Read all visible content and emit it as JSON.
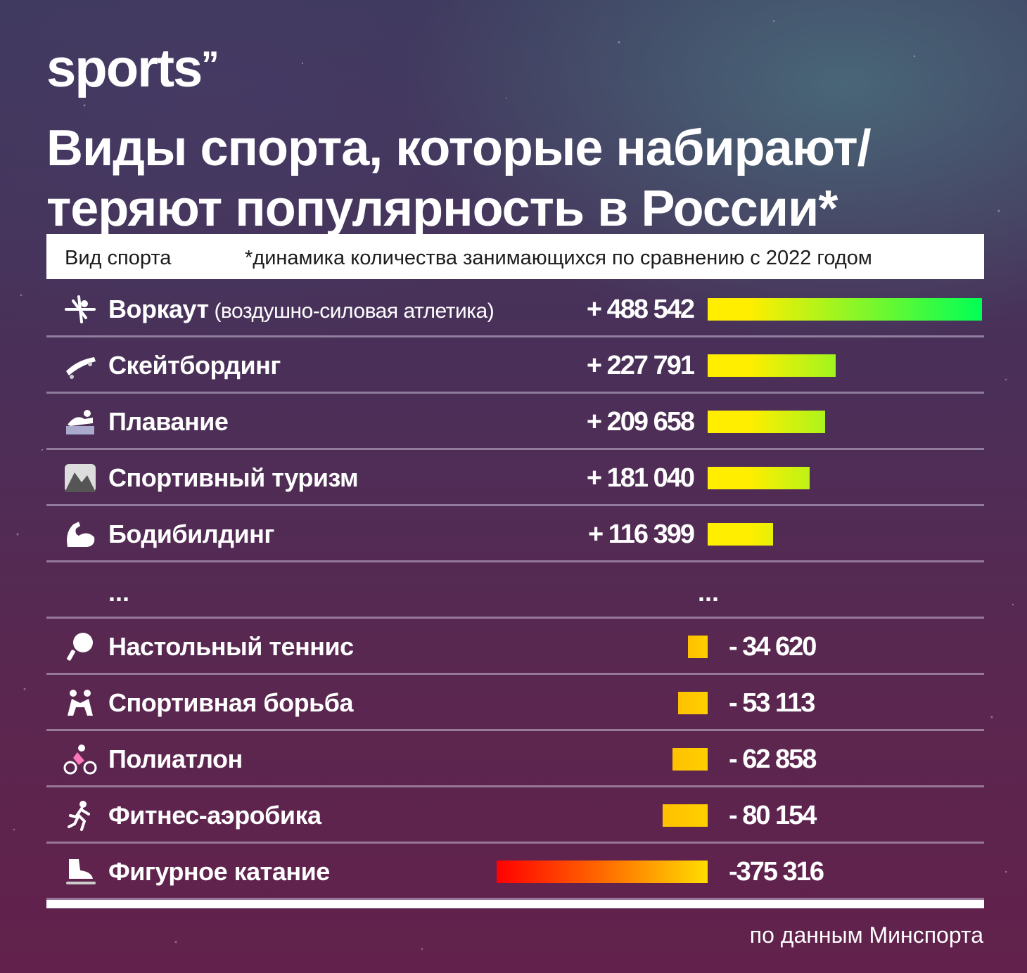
{
  "logo": {
    "text": "sports",
    "mark": "’’"
  },
  "title": "Виды спорта, которые набирают/ теряют популярность в России*",
  "header": {
    "col1": "Вид спорта",
    "col2": "*динамика количества занимающихся по сравнению с 2022 годом"
  },
  "ellipsis": "...",
  "source": "по данным Минспорта",
  "chart_data": {
    "type": "bar",
    "title": "Виды спорта, которые набирают/ теряют популярность в России*",
    "subtitle": "*динамика количества занимающихся по сравнению с 2022 годом",
    "categories": [
      "Воркаут",
      "Скейтбординг",
      "Плавание",
      "Спортивный туризм",
      "Бодибилдинг",
      "Настольный теннис",
      "Спортивная борьба",
      "Полиатлон",
      "Фитнес-аэробика",
      "Фигурное катание"
    ],
    "category_notes": [
      "(воздушно-силовая атлетика)",
      "",
      "",
      "",
      "",
      "",
      "",
      "",
      "",
      ""
    ],
    "values": [
      488542,
      227791,
      209658,
      181040,
      116399,
      -34620,
      -53113,
      -62858,
      -80154,
      -375316
    ],
    "value_labels": [
      "+ 488 542",
      "+ 227 791",
      "+ 209 658",
      "+ 181 040",
      "+ 116 399",
      "- 34 620",
      "- 53 113",
      "- 62 858",
      "- 80 154",
      "-375 316"
    ],
    "icons": [
      "gymnast-icon",
      "skateboard-icon",
      "swimmer-icon",
      "mountain-icon",
      "flexed-biceps-icon",
      "ping-pong-icon",
      "wrestlers-icon",
      "cyclist-icon",
      "runner-icon",
      "ice-skate-icon"
    ],
    "orientation": "horizontal",
    "colors": {
      "positive_start": "#ffee00",
      "positive_end": "#00ff55",
      "negative_start": "#ff0000",
      "negative_end": "#ffdd00",
      "small_negative": "#ffd000"
    }
  }
}
